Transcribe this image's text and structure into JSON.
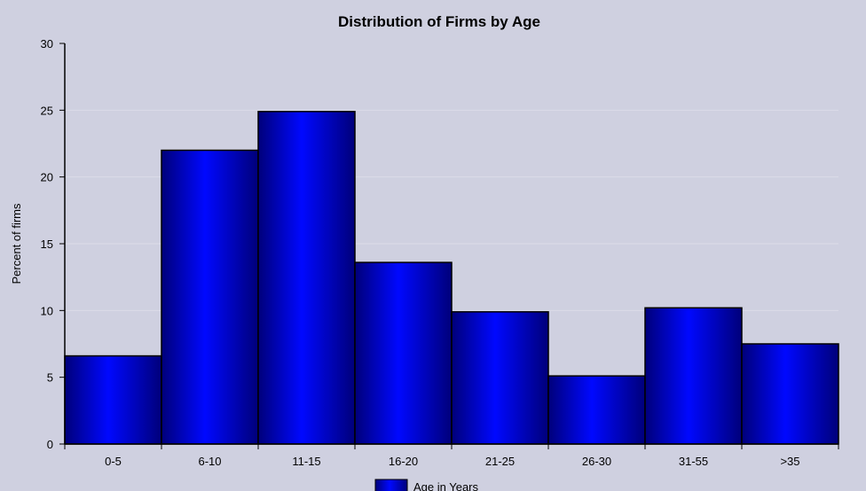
{
  "chart_data": {
    "type": "bar",
    "title": "Distribution of Firms by Age",
    "ylabel": "Percent of firms",
    "xlabel": "",
    "categories": [
      "0-5",
      "6-10",
      "11-15",
      "16-20",
      "21-25",
      "26-30",
      "31-55",
      ">35"
    ],
    "series": [
      {
        "name": "Age in Years",
        "values": [
          6.6,
          22.0,
          24.9,
          13.6,
          9.9,
          5.1,
          10.2,
          7.5
        ]
      }
    ],
    "ylim": [
      0,
      30
    ],
    "yticks": [
      "0",
      "5",
      "10",
      "15",
      "20",
      "25",
      "30"
    ],
    "grid": true,
    "legend": "bottom-center",
    "colors": {
      "background": "#cfd0e0",
      "bar_fill": "#0000e8",
      "bar_edge": "#000000",
      "gridline": "#dcdce8",
      "axis": "#000000"
    }
  }
}
